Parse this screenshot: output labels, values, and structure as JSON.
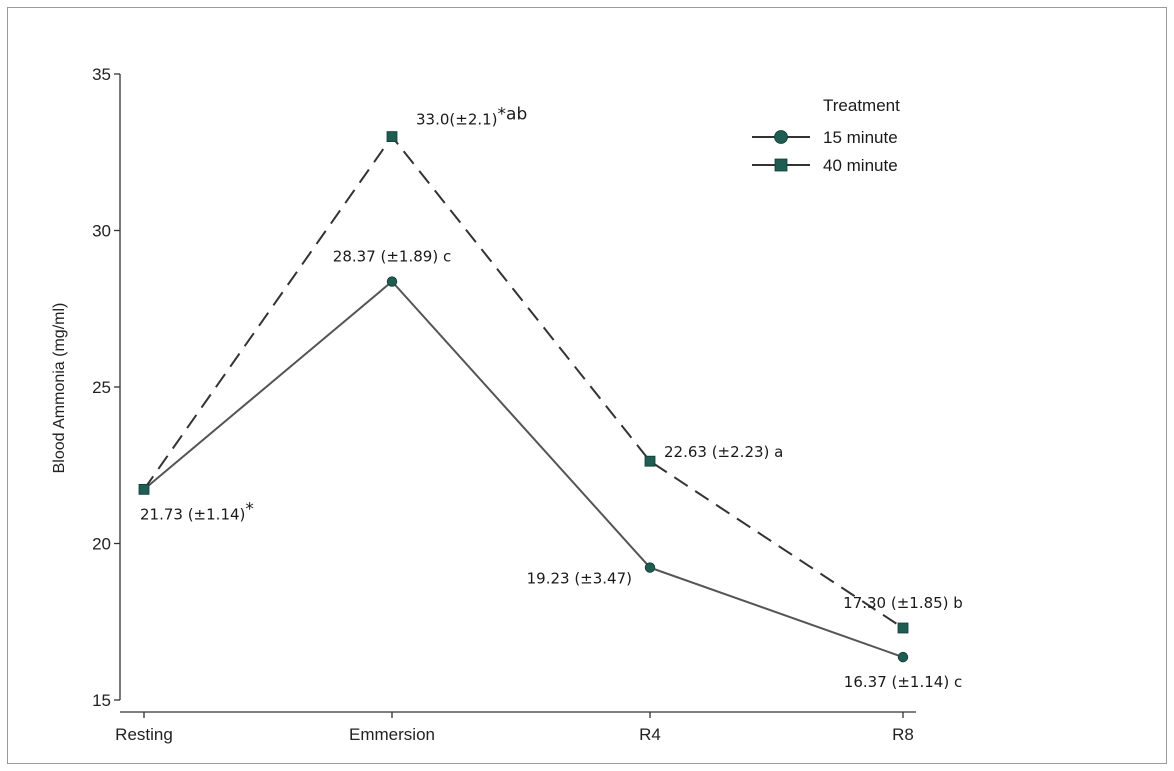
{
  "chart_data": {
    "type": "line",
    "title": "",
    "xlabel": "",
    "ylabel": "Blood Ammonia (mg/ml)",
    "categories": [
      "Resting",
      "Emmersion",
      "R4",
      "R8"
    ],
    "ylim": [
      15,
      35
    ],
    "yticks": [
      15,
      20,
      25,
      30,
      35
    ],
    "grid": false,
    "legend": {
      "title": "Treatment",
      "position": "top-right"
    },
    "series": [
      {
        "name": "15 minute",
        "marker": "circle",
        "line_style": "solid",
        "color": "#1f5c52",
        "line_color": "#555555",
        "values": [
          21.73,
          28.37,
          19.23,
          16.37
        ]
      },
      {
        "name": "40 minute",
        "marker": "square",
        "line_style": "dashed",
        "color": "#1f5c52",
        "line_color": "#333333",
        "values": [
          21.73,
          33.0,
          22.63,
          17.3
        ]
      }
    ],
    "annotations": [
      {
        "text": "21.73 (±1.14)",
        "suffix": "*",
        "series": "15 minute",
        "category": "Resting",
        "placement": "below-right"
      },
      {
        "text": "28.37 (±1.89) c",
        "series": "15 minute",
        "category": "Emmersion",
        "placement": "above"
      },
      {
        "text": "19.23 (±3.47)",
        "series": "15 minute",
        "category": "R4",
        "placement": "below-left"
      },
      {
        "text": "16.37 (±1.14) c",
        "series": "15 minute",
        "category": "R8",
        "placement": "below"
      },
      {
        "text": "33.0(±2.1)",
        "suffix": "*ab",
        "series": "40 minute",
        "category": "Emmersion",
        "placement": "above-right"
      },
      {
        "text": "22.63 (±2.23) a",
        "series": "40 minute",
        "category": "R4",
        "placement": "right"
      },
      {
        "text": "17.30 (±1.85) b",
        "series": "40 minute",
        "category": "R8",
        "placement": "above"
      }
    ]
  }
}
